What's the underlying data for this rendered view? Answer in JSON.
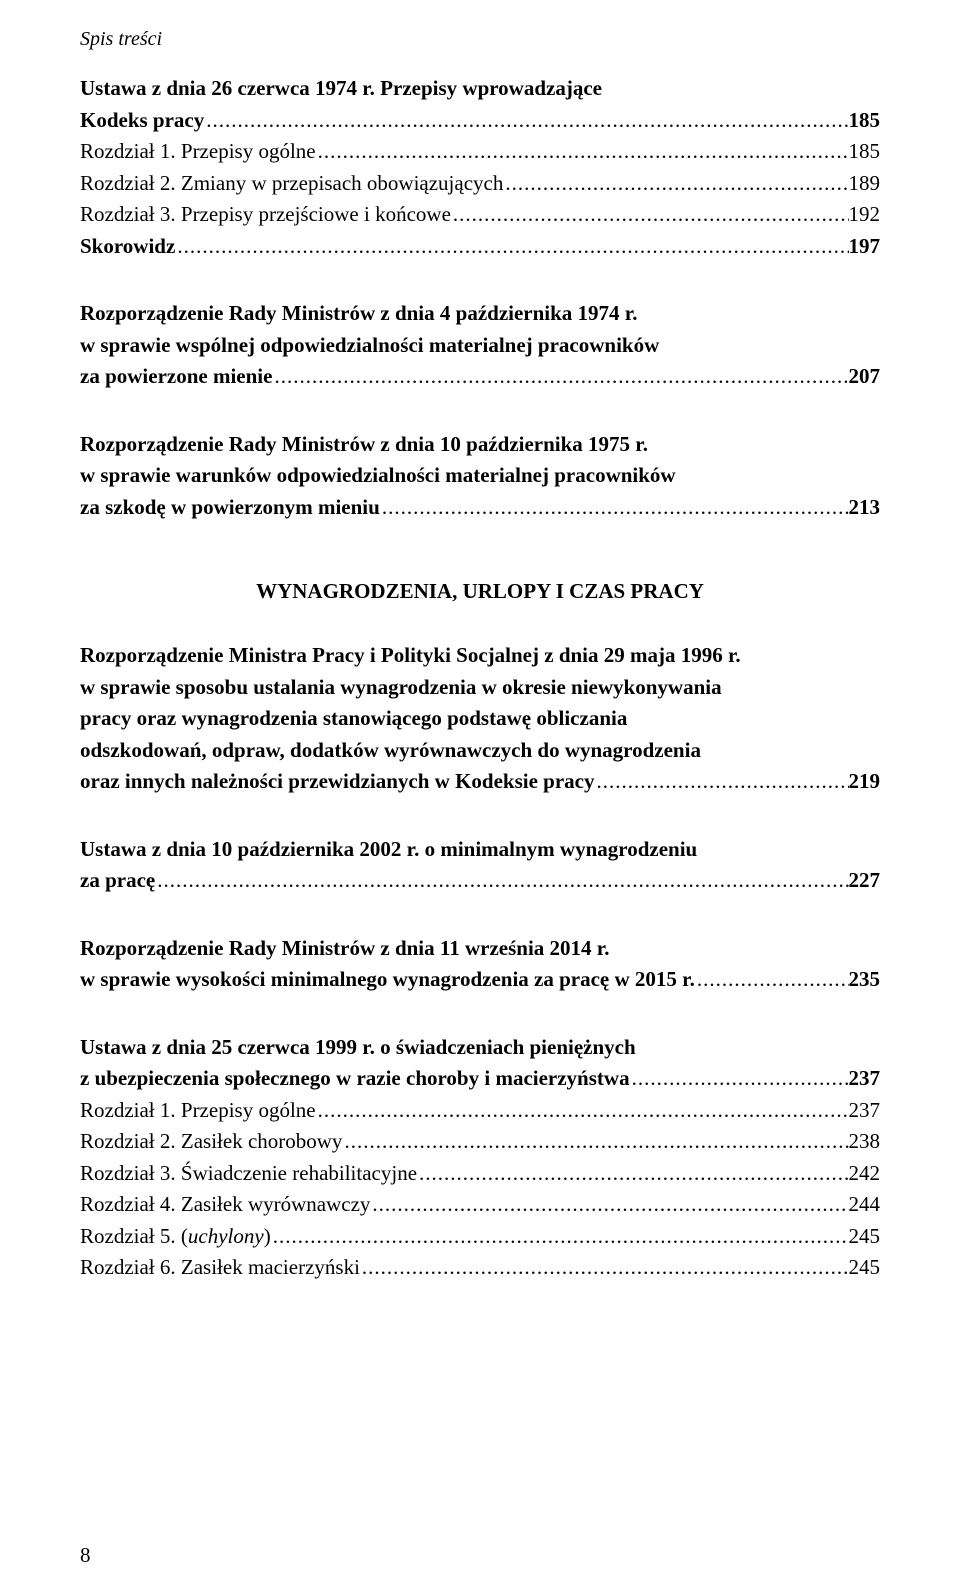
{
  "page": {
    "header": "Spis treści",
    "pageNumber": "8"
  },
  "entries": [
    {
      "type": "multi",
      "bold": true,
      "lines": [
        "Ustawa z dnia 26 czerwca 1974 r. Przepisy wprowadzające"
      ],
      "lastLine": "Kodeks pracy",
      "page": "185"
    },
    {
      "type": "single",
      "label": "Rozdział 1. Przepisy ogólne",
      "page": "185"
    },
    {
      "type": "single",
      "label": "Rozdział 2. Zmiany w przepisach obowiązujących",
      "page": "189"
    },
    {
      "type": "single",
      "label": "Rozdział 3. Przepisy przejściowe i końcowe",
      "page": "192"
    },
    {
      "type": "single",
      "bold": true,
      "label": "Skorowidz",
      "page": "197",
      "gapAfter": true
    },
    {
      "type": "multi",
      "bold": true,
      "lines": [
        "Rozporządzenie Rady Ministrów z dnia 4 października 1974 r.",
        "w sprawie wspólnej odpowiedzialności materialnej pracowników"
      ],
      "lastLine": "za powierzone mienie",
      "page": "207",
      "gapAfter": true
    },
    {
      "type": "multi",
      "bold": true,
      "lines": [
        "Rozporządzenie Rady Ministrów z dnia 10 października 1975 r.",
        "w sprawie warunków odpowiedzialności materialnej pracowników"
      ],
      "lastLine": "za szkodę w powierzonym mieniu",
      "page": "213"
    },
    {
      "type": "section-title",
      "text": "WYNAGRODZENIA, URLOPY I CZAS PRACY"
    },
    {
      "type": "multi",
      "bold": true,
      "lines": [
        "Rozporządzenie Ministra Pracy i Polityki Socjalnej z dnia 29 maja 1996 r.",
        "w sprawie sposobu ustalania wynagrodzenia w okresie niewykonywania",
        "pracy oraz wynagrodzenia stanowiącego podstawę obliczania",
        "odszkodowań, odpraw, dodatków wyrównawczych do wynagrodzenia"
      ],
      "lastLine": "oraz innych należności przewidzianych w Kodeksie pracy",
      "page": "219",
      "gapAfter": true
    },
    {
      "type": "multi",
      "bold": true,
      "lines": [
        "Ustawa z dnia 10 października 2002 r. o minimalnym wynagrodzeniu"
      ],
      "lastLine": "za pracę",
      "page": "227",
      "gapAfter": true
    },
    {
      "type": "multi",
      "bold": true,
      "lines": [
        "Rozporządzenie Rady Ministrów z dnia 11 września 2014 r."
      ],
      "lastLine": "w sprawie wysokości minimalnego wynagrodzenia za pracę w 2015 r. ",
      "page": "235",
      "gapAfter": true
    },
    {
      "type": "multi",
      "bold": true,
      "lines": [
        "Ustawa z dnia 25 czerwca 1999 r. o świadczeniach pieniężnych"
      ],
      "lastLine": "z ubezpieczenia społecznego w razie choroby i macierzyństwa",
      "page": "237"
    },
    {
      "type": "single",
      "label": "Rozdział 1. Przepisy ogólne",
      "page": "237"
    },
    {
      "type": "single",
      "label": "Rozdział 2. Zasiłek chorobowy",
      "page": "238"
    },
    {
      "type": "single",
      "label": "Rozdział 3. Świadczenie rehabilitacyjne",
      "page": "242"
    },
    {
      "type": "single",
      "label": "Rozdział 4. Zasiłek wyrównawczy",
      "page": "244"
    },
    {
      "type": "single-italic",
      "prefix": "Rozdział 5. (",
      "italic": "uchylony",
      "suffix": ")",
      "page": "245"
    },
    {
      "type": "single",
      "label": "Rozdział 6. Zasiłek macierzyński",
      "page": "245"
    }
  ]
}
